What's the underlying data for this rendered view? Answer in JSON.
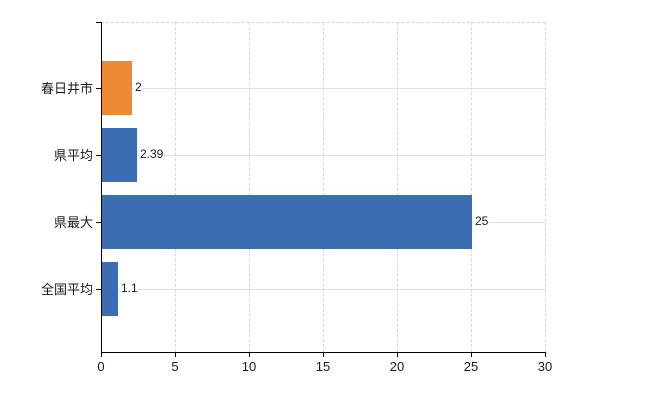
{
  "chart_data": {
    "type": "bar",
    "orientation": "horizontal",
    "title": "",
    "categories": [
      "春日井市",
      "県平均",
      "県最大",
      "全国平均"
    ],
    "values": [
      2,
      2.39,
      25,
      1.1
    ],
    "value_labels": [
      "2",
      "2.39",
      "25",
      "1.1"
    ],
    "bar_colors": [
      "#ec8a36",
      "#3a6db2",
      "#3a6db2",
      "#3a6db2"
    ],
    "x_ticks": [
      0,
      5,
      10,
      15,
      20,
      25,
      30
    ],
    "x_tick_labels": [
      "0",
      "5",
      "10",
      "15",
      "20",
      "25",
      "30"
    ],
    "xlim": [
      0,
      30
    ],
    "grid": true,
    "legend": false,
    "background": "#ffffff",
    "axis_color": "#000000",
    "gridline_v_color": "#d8d2dc",
    "gridline_h_color": "#dde3da",
    "label_color": "#1a1a1a",
    "plot_border_top_style": "dashed"
  }
}
